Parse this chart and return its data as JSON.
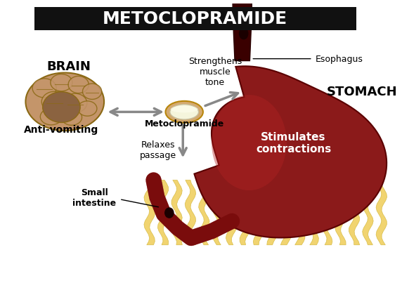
{
  "title": "METOCLOPRAMIDE",
  "title_bg": "#111111",
  "title_color": "#ffffff",
  "bg_color": "#ffffff",
  "brain_label": "BRAIN",
  "brain_sublabel": "Anti-vomiting",
  "stomach_label": "STOMACH",
  "drug_label": "Metoclopramide",
  "arrow1_label": "Strengthens\nmuscle\ntone",
  "arrow2_label": "Relaxes\npassage",
  "arrow3_label": "Stimulates\ncontractions",
  "esophagus_label": "Esophagus",
  "intestine_label": "Small\nintestine",
  "stomach_color": "#8B1A1A",
  "stomach_highlight": "#A52A2A",
  "esophagus_color": "#6B0000",
  "intestine_color": "#F5DEB3",
  "pill_outer": "#D4AA70",
  "pill_inner": "#F5F5DC",
  "arrow_color": "#888888",
  "brain_color": "#C4956A",
  "figsize": [
    5.72,
    4.14
  ],
  "dpi": 100
}
